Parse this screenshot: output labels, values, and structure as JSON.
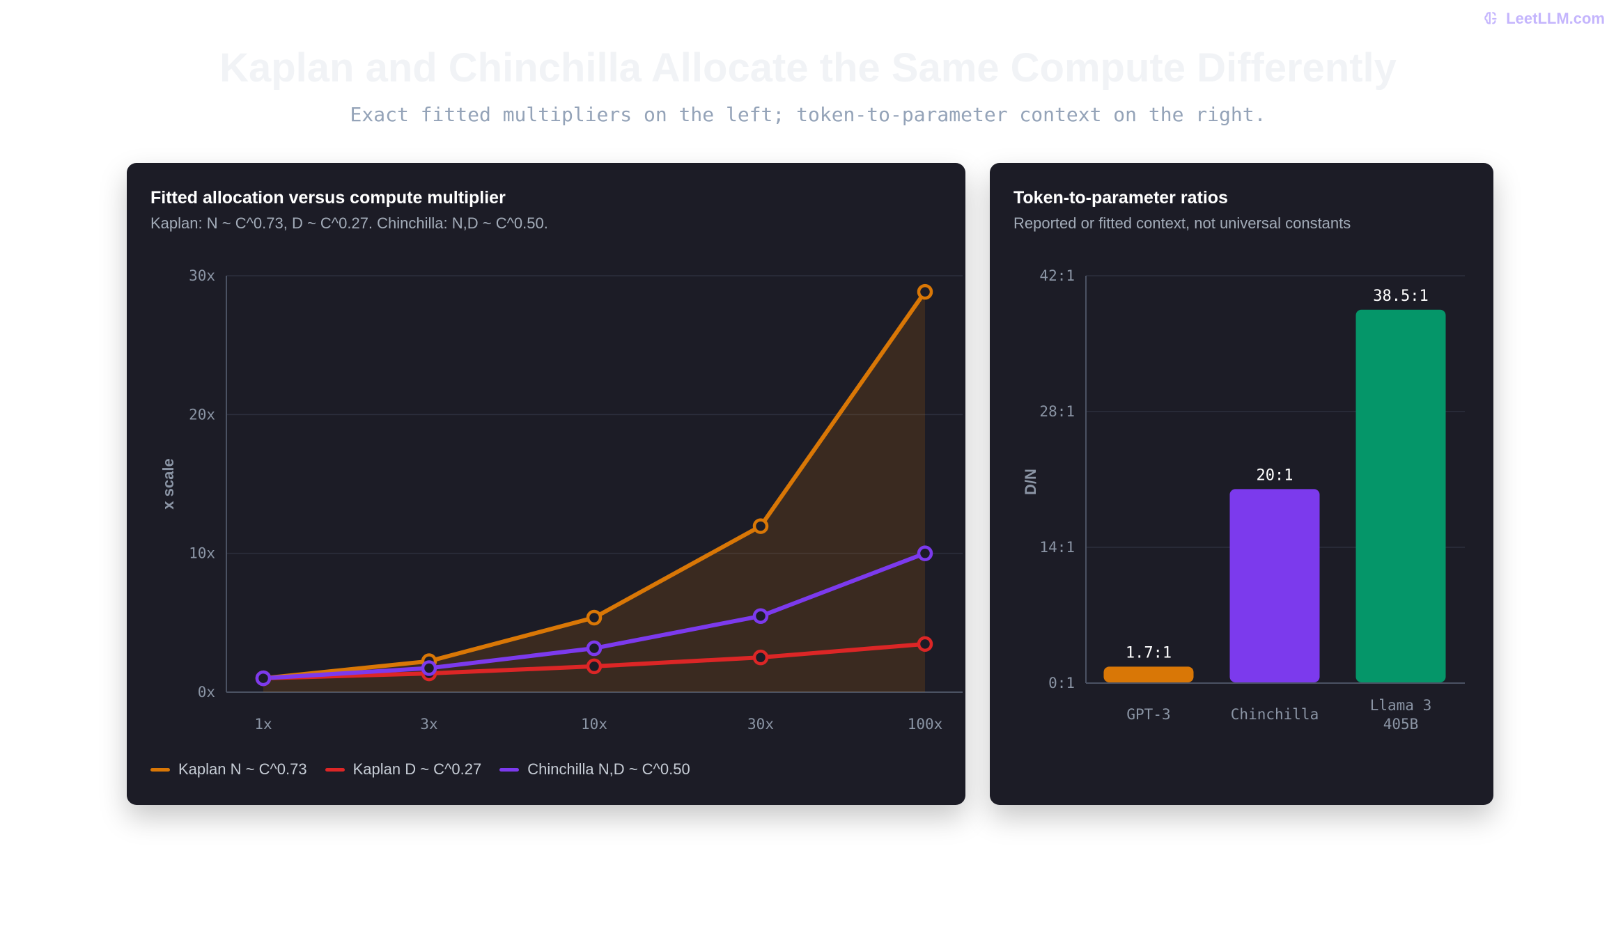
{
  "brand": {
    "name": "LeetLLM.com",
    "icon": "brain-icon"
  },
  "header": {
    "title": "Kaplan and Chinchilla Allocate the Same Compute Differently",
    "subtitle": "Exact fitted multipliers on the left; token-to-parameter context on the right."
  },
  "left_panel": {
    "title": "Fitted allocation versus compute multiplier",
    "subtitle": "Kaplan: N ~ C^0.73, D ~ C^0.27. Chinchilla: N,D ~ C^0.50."
  },
  "right_panel": {
    "title": "Token-to-parameter ratios",
    "subtitle": "Reported or fitted context, not universal constants"
  },
  "chart_data": [
    {
      "type": "line",
      "title": "Fitted allocation versus compute multiplier",
      "xlabel": "",
      "ylabel": "x scale",
      "x": [
        "1x",
        "3x",
        "10x",
        "30x",
        "100x"
      ],
      "yticks": [
        "0x",
        "10x",
        "20x",
        "30x"
      ],
      "ylim": [
        0,
        30
      ],
      "grid": true,
      "legend": "bottom-left",
      "series": [
        {
          "name": "Kaplan N ~ C^0.73",
          "values": [
            1.0,
            2.23,
            5.37,
            11.96,
            28.84
          ],
          "color": "#d97706",
          "fill": true
        },
        {
          "name": "Kaplan D ~ C^0.27",
          "values": [
            1.0,
            1.35,
            1.86,
            2.5,
            3.47
          ],
          "color": "#dc2626"
        },
        {
          "name": "Chinchilla N,D ~ C^0.50",
          "values": [
            1.0,
            1.73,
            3.16,
            5.48,
            10.0
          ],
          "color": "#7c3aed"
        }
      ]
    },
    {
      "type": "bar",
      "title": "Token-to-parameter ratios",
      "ylabel": "D/N",
      "categories": [
        "GPT-3",
        "Chinchilla",
        "Llama 3\n405B"
      ],
      "values": [
        1.7,
        20,
        38.5
      ],
      "labels": [
        "1.7:1",
        "20:1",
        "38.5:1"
      ],
      "colors": [
        "#d97706",
        "#7c3aed",
        "#059669"
      ],
      "yticks": [
        "0:1",
        "14:1",
        "28:1",
        "42:1"
      ],
      "ylim": [
        0,
        42
      ],
      "grid": true
    }
  ]
}
